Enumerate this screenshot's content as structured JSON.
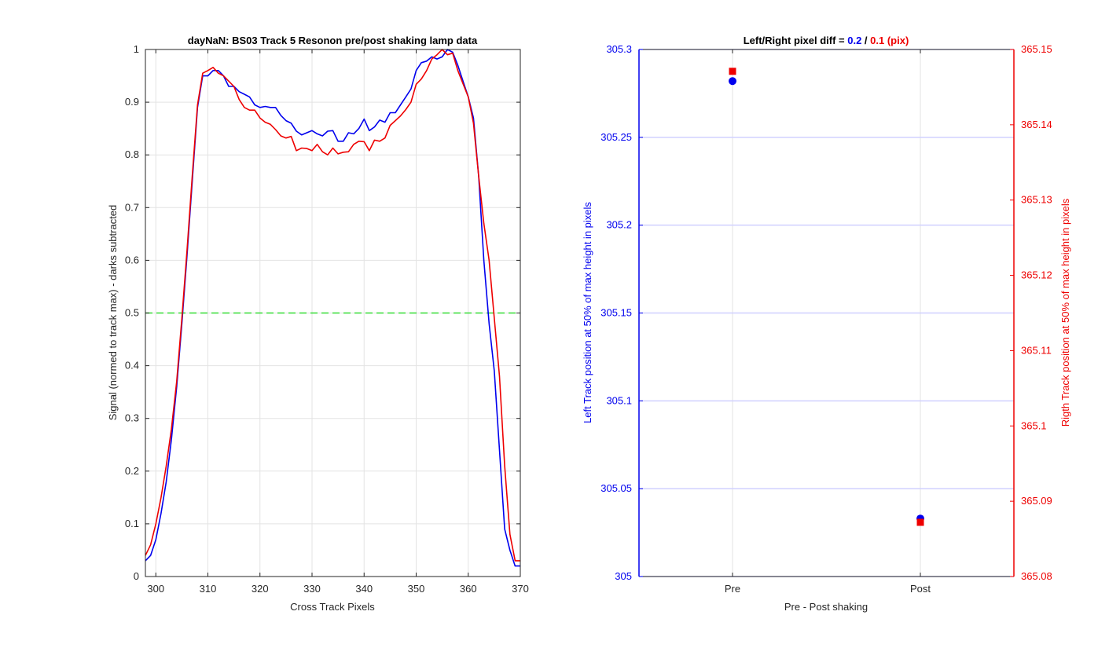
{
  "chart_data": [
    {
      "type": "line",
      "title": "dayNaN: BS03  Track 5 Resonon pre/post shaking lamp data",
      "xlabel": "Cross Track Pixels",
      "ylabel": "Signal (normed to track max) - darks subtracted",
      "xlim": [
        298,
        370
      ],
      "ylim": [
        0,
        1
      ],
      "xticks": [
        "300",
        "310",
        "320",
        "330",
        "340",
        "350",
        "360",
        "370"
      ],
      "yticks": [
        "0",
        "0.1",
        "0.2",
        "0.3",
        "0.4",
        "0.5",
        "0.6",
        "0.7",
        "0.8",
        "0.9",
        "1"
      ],
      "grid": true,
      "reference_line": {
        "y": 0.5,
        "color": "#33dd33",
        "style": "dashed"
      },
      "series": [
        {
          "color": "#0000ee",
          "x": [
            298,
            299,
            300,
            301,
            302,
            303,
            304,
            305,
            306,
            307,
            308,
            309,
            310,
            311,
            312,
            313,
            314,
            315,
            316,
            317,
            318,
            319,
            320,
            321,
            322,
            323,
            324,
            325,
            326,
            327,
            328,
            329,
            330,
            331,
            332,
            333,
            334,
            335,
            336,
            337,
            338,
            339,
            340,
            341,
            342,
            343,
            344,
            345,
            346,
            347,
            348,
            349,
            350,
            351,
            352,
            353,
            354,
            355,
            356,
            357,
            358,
            359,
            360,
            361,
            362,
            363,
            364,
            365,
            366,
            367,
            368,
            369,
            370
          ],
          "y": [
            0.03,
            0.04,
            0.07,
            0.12,
            0.18,
            0.26,
            0.36,
            0.48,
            0.61,
            0.75,
            0.89,
            0.95,
            0.95,
            0.96,
            0.96,
            0.95,
            0.93,
            0.93,
            0.92,
            0.915,
            0.91,
            0.895,
            0.89,
            0.892,
            0.89,
            0.89,
            0.875,
            0.865,
            0.86,
            0.845,
            0.838,
            0.842,
            0.846,
            0.84,
            0.836,
            0.845,
            0.846,
            0.826,
            0.826,
            0.842,
            0.84,
            0.85,
            0.868,
            0.846,
            0.853,
            0.866,
            0.862,
            0.88,
            0.88,
            0.895,
            0.91,
            0.925,
            0.96,
            0.975,
            0.978,
            0.986,
            0.982,
            0.986,
            1.0,
            0.995,
            0.97,
            0.94,
            0.91,
            0.87,
            0.76,
            0.6,
            0.48,
            0.39,
            0.24,
            0.09,
            0.05,
            0.02,
            0.02
          ]
        },
        {
          "color": "#ee0000",
          "x": [
            298,
            299,
            300,
            301,
            302,
            303,
            304,
            305,
            306,
            307,
            308,
            309,
            310,
            311,
            312,
            313,
            314,
            315,
            316,
            317,
            318,
            319,
            320,
            321,
            322,
            323,
            324,
            325,
            326,
            327,
            328,
            329,
            330,
            331,
            332,
            333,
            334,
            335,
            336,
            337,
            338,
            339,
            340,
            341,
            342,
            343,
            344,
            345,
            346,
            347,
            348,
            349,
            350,
            351,
            352,
            353,
            354,
            355,
            356,
            357,
            358,
            359,
            360,
            361,
            362,
            363,
            364,
            365,
            366,
            367,
            368,
            369,
            370
          ],
          "y": [
            0.04,
            0.06,
            0.1,
            0.15,
            0.21,
            0.28,
            0.37,
            0.49,
            0.62,
            0.76,
            0.895,
            0.955,
            0.96,
            0.966,
            0.955,
            0.95,
            0.94,
            0.93,
            0.905,
            0.89,
            0.885,
            0.885,
            0.87,
            0.862,
            0.858,
            0.848,
            0.836,
            0.832,
            0.835,
            0.808,
            0.813,
            0.812,
            0.808,
            0.82,
            0.806,
            0.8,
            0.813,
            0.802,
            0.805,
            0.806,
            0.82,
            0.826,
            0.825,
            0.808,
            0.828,
            0.826,
            0.832,
            0.856,
            0.865,
            0.874,
            0.886,
            0.9,
            0.934,
            0.944,
            0.96,
            0.982,
            0.99,
            1.0,
            0.99,
            0.993,
            0.96,
            0.935,
            0.91,
            0.86,
            0.76,
            0.67,
            0.6,
            0.49,
            0.38,
            0.21,
            0.08,
            0.03,
            0.03
          ]
        }
      ]
    },
    {
      "type": "scatter",
      "title_prefix": "Left/Right pixel diff = ",
      "title_left_value": "0.2",
      "title_sep": " / ",
      "title_right_value": "0.1 (pix)",
      "xlabel": "Pre - Post shaking",
      "categories": [
        "Pre",
        "Post"
      ],
      "left_axis": {
        "label": "Left Track position at 50% of max height in pixels",
        "ylim": [
          305,
          305.3
        ],
        "ticks": [
          "305",
          "305.05",
          "305.1",
          "305.15",
          "305.2",
          "305.25",
          "305.3"
        ],
        "color": "#0000ee"
      },
      "right_axis": {
        "label": "Rigth Track position at 50% of max height in pixels",
        "ylim": [
          365.08,
          365.15
        ],
        "ticks": [
          "365.08",
          "365.09",
          "365.1",
          "365.11",
          "365.12",
          "365.13",
          "365.14",
          "365.15"
        ],
        "color": "#ee0000"
      },
      "series": [
        {
          "axis": "left",
          "marker": "circle",
          "color": "#0000ee",
          "values": [
            305.282,
            305.033
          ]
        },
        {
          "axis": "right",
          "marker": "square",
          "color": "#ee0000",
          "values": [
            365.1471,
            365.0872
          ]
        }
      ],
      "grid": true
    }
  ]
}
